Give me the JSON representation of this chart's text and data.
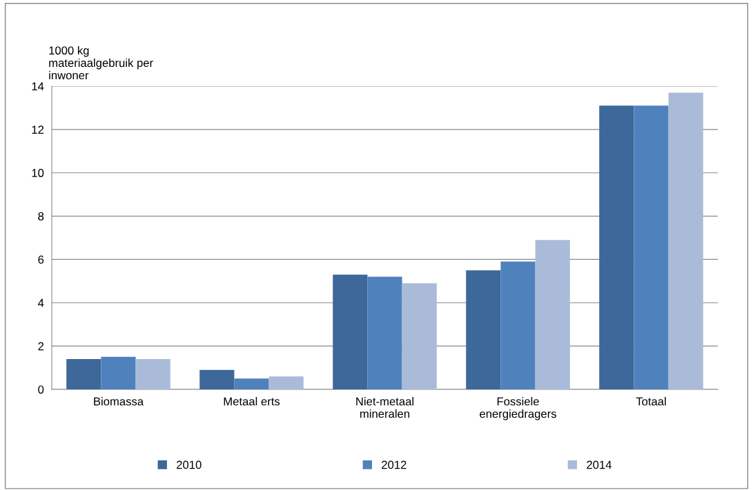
{
  "chart_data": {
    "type": "bar",
    "ylabel": "1000 kg\nmateriaalgebruik per\ninwoner",
    "categories": [
      "Biomassa",
      "Metaal erts",
      "Niet-metaal\nmineralen",
      "Fossiele\nenergiedragers",
      "Totaal"
    ],
    "series": [
      {
        "name": "2010",
        "color": "#3d6899",
        "values": [
          1.4,
          0.9,
          5.3,
          5.5,
          13.1
        ]
      },
      {
        "name": "2012",
        "color": "#4f81bd",
        "values": [
          1.5,
          0.5,
          5.2,
          5.9,
          13.1
        ]
      },
      {
        "name": "2014",
        "color": "#aabbd9",
        "values": [
          1.4,
          0.6,
          4.9,
          6.9,
          13.7
        ]
      }
    ],
    "ylim": [
      0,
      14
    ],
    "yticks": [
      0,
      2,
      4,
      6,
      8,
      10,
      12,
      14
    ],
    "grid": "y",
    "legend": "bottom"
  }
}
